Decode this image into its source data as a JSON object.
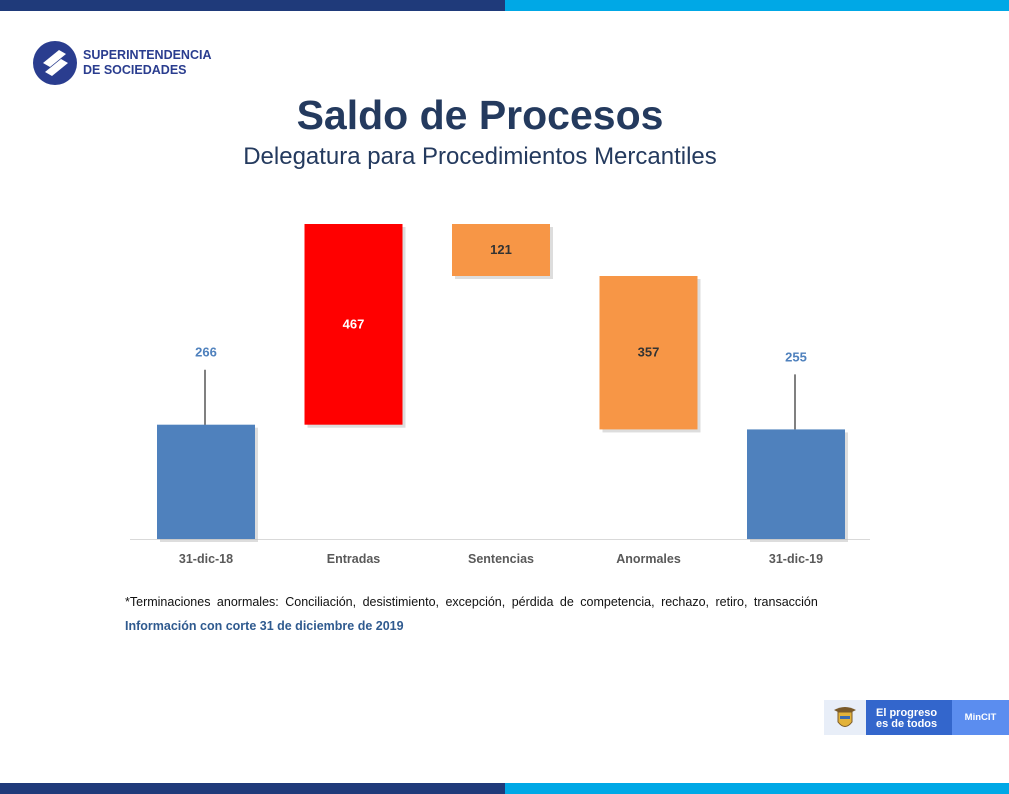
{
  "header": {
    "logo_line1": "SUPERINTENDENCIA",
    "logo_line2": "DE SOCIEDADES",
    "title": "Saldo de Procesos",
    "subtitle": "Delegatura para Procedimientos Mercantiles"
  },
  "chart_data": {
    "type": "waterfall",
    "categories": [
      "31-dic-18",
      "Entradas",
      "Sentencias",
      "Anormales",
      "31-dic-19"
    ],
    "values": [
      266,
      467,
      -121,
      -357,
      255
    ],
    "labels": [
      "266",
      "467",
      "121",
      "357",
      "255"
    ],
    "kinds": [
      "total",
      "increase",
      "decrease",
      "decrease",
      "total"
    ],
    "colors": {
      "total": "#4f81bd",
      "increase": "#ff0000",
      "decrease": "#f79646"
    },
    "label_colors": {
      "total": "#4f81bd",
      "increase": "#ffffff",
      "decrease": "#333333"
    },
    "ylim": [
      0,
      733
    ]
  },
  "footer": {
    "note": "*Terminaciones anormales: Conciliación, desistimiento, excepción, pérdida de competencia, rechazo, retiro, transacción",
    "info": "Información con corte 31 de diciembre de 2019",
    "gov_line1": "El progreso",
    "gov_line2": "es de todos",
    "gov_ministry": "MinCIT"
  }
}
